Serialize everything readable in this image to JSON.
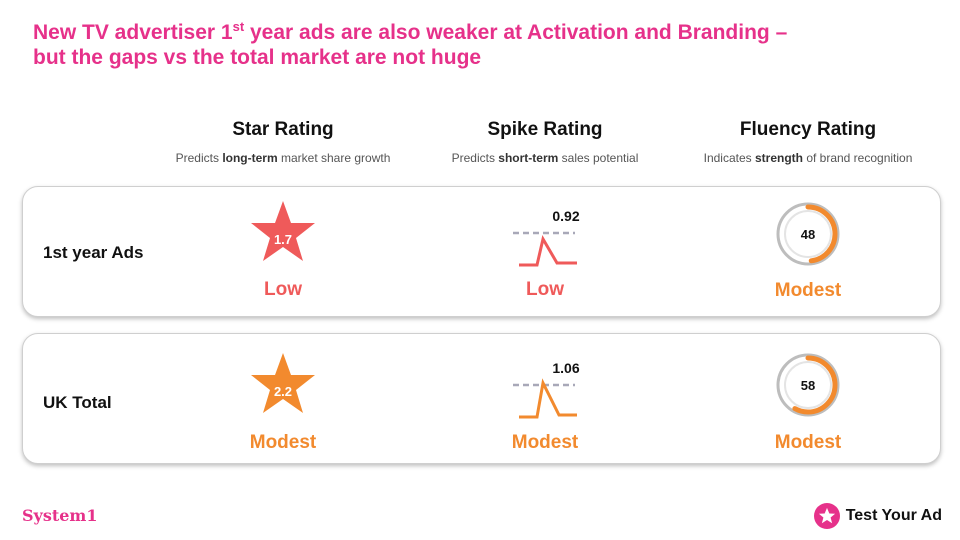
{
  "title": {
    "pre": "New TV advertiser 1",
    "sup": "st",
    "post": " year ads are also weaker at Activation and Branding –",
    "line2": "but the gaps vs the total market are not huge"
  },
  "columns": [
    {
      "heading": "Star Rating",
      "sub_pre": "Predicts ",
      "sub_bold": "long-term",
      "sub_post": " market share growth"
    },
    {
      "heading": "Spike Rating",
      "sub_pre": "Predicts ",
      "sub_bold": "short-term",
      "sub_post": " sales potential"
    },
    {
      "heading": "Fluency Rating",
      "sub_pre": "Indicates ",
      "sub_bold": "strength",
      "sub_post": " of brand recognition"
    }
  ],
  "rows": [
    {
      "label": "1st year Ads",
      "star": {
        "value": "1.7",
        "rating": "Low",
        "color": "#ef5a5a"
      },
      "spike": {
        "value": "0.92",
        "rating": "Low",
        "color": "#ef5a5a"
      },
      "fluency": {
        "value": "48",
        "level": 0.48,
        "rating": "Modest",
        "color": "#f28a2e"
      }
    },
    {
      "label": "UK Total",
      "star": {
        "value": "2.2",
        "rating": "Modest",
        "color": "#f28a2e"
      },
      "spike": {
        "value": "1.06",
        "rating": "Modest",
        "color": "#f28a2e"
      },
      "fluency": {
        "value": "58",
        "level": 0.58,
        "rating": "Modest",
        "color": "#f28a2e"
      }
    }
  ],
  "footer": {
    "left_logo": "System1",
    "right_logo": "Test Your Ad",
    "accent": "#e6318a"
  }
}
